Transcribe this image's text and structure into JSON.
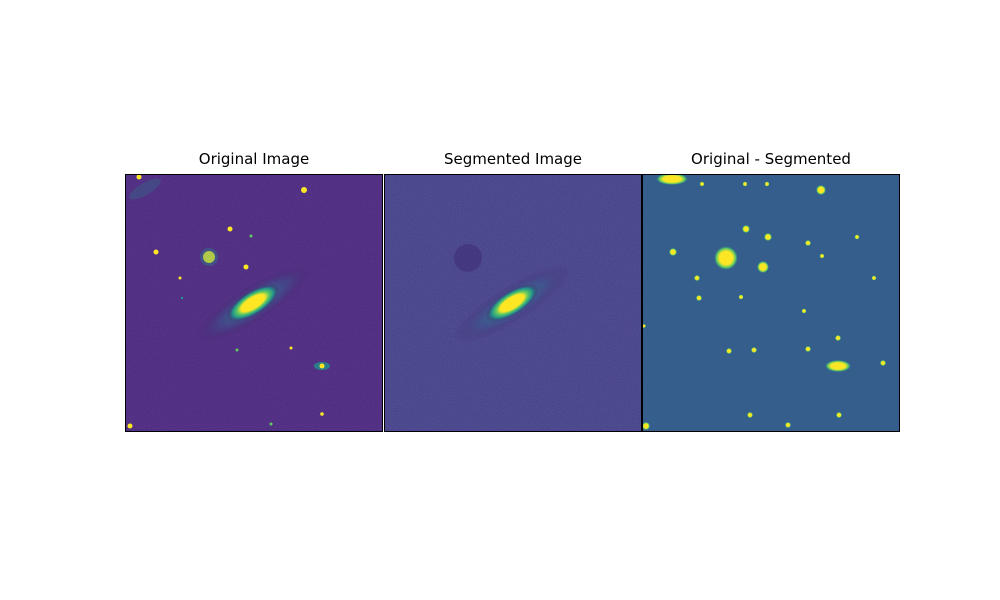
{
  "panels": [
    {
      "title": "Original Image"
    },
    {
      "title": "Segmented Image"
    },
    {
      "title": "Original - Segmented"
    }
  ],
  "colors": {
    "viridis_low": "#44185f",
    "viridis_bg_mid": "#365e8c",
    "viridis_teal": "#21918c",
    "viridis_green": "#5ec962",
    "viridis_yellow": "#fde725"
  }
}
